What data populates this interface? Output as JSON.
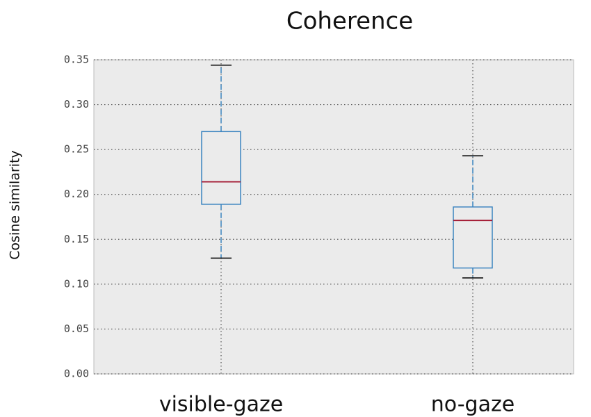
{
  "chart_data": {
    "type": "box",
    "title": "Coherence",
    "y_label": "Cosine similarity",
    "categories": [
      "visible-gaze",
      "no-gaze"
    ],
    "boxes": [
      {
        "whislo": 0.129,
        "q1": 0.189,
        "med": 0.214,
        "q3": 0.27,
        "whishi": 0.344
      },
      {
        "whislo": 0.107,
        "q1": 0.118,
        "med": 0.171,
        "q3": 0.186,
        "whishi": 0.243
      }
    ],
    "box_color": "#3b84c0",
    "median_color": "#a2142f",
    "cap_color": "#000000",
    "ylim": [
      0,
      0.35
    ],
    "yticks": [
      {
        "value": 0,
        "label": "0.00"
      },
      0.05,
      {
        "value": 0.1,
        "label": "0.10"
      },
      0.15,
      {
        "value": 0.2,
        "label": "0.20"
      },
      0.25,
      {
        "value": 0.3,
        "label": "0.30"
      },
      0.35
    ],
    "grid": true
  }
}
